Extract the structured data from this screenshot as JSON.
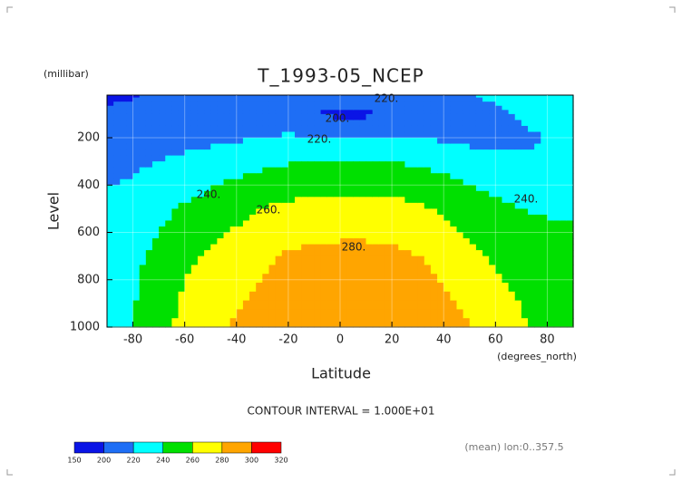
{
  "chart_data": {
    "type": "contour",
    "title": "T_1993-05_NCEP",
    "y_units": "(millibar)",
    "ylabel": "Level",
    "xlabel": "Latitude",
    "x_units": "(degrees_north)",
    "xlim": [
      -90,
      90
    ],
    "ylim": [
      1000,
      20
    ],
    "xticks": [
      -80,
      -60,
      -40,
      -20,
      0,
      20,
      40,
      60,
      80
    ],
    "yticks": [
      200,
      400,
      600,
      800,
      1000
    ],
    "x": [
      -90,
      -80,
      -70,
      -60,
      -50,
      -40,
      -30,
      -20,
      -10,
      0,
      10,
      20,
      30,
      40,
      50,
      60,
      70,
      80,
      90
    ],
    "y": [
      30,
      100,
      200,
      300,
      400,
      500,
      600,
      700,
      850,
      1000
    ],
    "z": [
      [
        195,
        199,
        205,
        210,
        214,
        216,
        217,
        216,
        215,
        214,
        214,
        215,
        216,
        218,
        219,
        222,
        226,
        228,
        230
      ],
      [
        205,
        208,
        210,
        212,
        213,
        214,
        213,
        208,
        199,
        196,
        197,
        202,
        210,
        213,
        215,
        217,
        222,
        224,
        225
      ],
      [
        210,
        212,
        214,
        215,
        216,
        218,
        220,
        222,
        221,
        220,
        220,
        221,
        220,
        217,
        216,
        215,
        218,
        220,
        221
      ],
      [
        215,
        217,
        220,
        223,
        226,
        230,
        234,
        238,
        240,
        241,
        241,
        240,
        237,
        232,
        227,
        224,
        222,
        222,
        222
      ],
      [
        219,
        222,
        228,
        233,
        238,
        244,
        249,
        252,
        254,
        255,
        255,
        254,
        251,
        246,
        240,
        236,
        233,
        232,
        231
      ],
      [
        224,
        228,
        235,
        242,
        248,
        254,
        260,
        264,
        266,
        267,
        267,
        266,
        263,
        257,
        250,
        244,
        240,
        238,
        237
      ],
      [
        228,
        232,
        240,
        248,
        255,
        262,
        268,
        273,
        276,
        277,
        277,
        276,
        273,
        266,
        258,
        252,
        246,
        243,
        242
      ],
      [
        230,
        236,
        245,
        254,
        262,
        270,
        277,
        282,
        284,
        285,
        285,
        284,
        280,
        273,
        265,
        258,
        252,
        248,
        246
      ],
      [
        232,
        238,
        250,
        262,
        270,
        277,
        283,
        288,
        291,
        292,
        293,
        292,
        288,
        280,
        272,
        265,
        258,
        253,
        250
      ],
      [
        235,
        240,
        255,
        265,
        275,
        282,
        288,
        295,
        297,
        298,
        300,
        301,
        295,
        288,
        280,
        272,
        262,
        258,
        255
      ]
    ],
    "contour_levels": [
      150,
      200,
      220,
      240,
      260,
      280,
      300,
      320
    ],
    "colors": [
      "#0a14e6",
      "#1e6ef5",
      "#00ffff",
      "#00e000",
      "#ffff00",
      "#ffa500",
      "#ff0000"
    ],
    "contour_labels": [
      "220.",
      "200.",
      "220.",
      "240.",
      "260.",
      "280.",
      "240."
    ],
    "contour_interval": "CONTOUR INTERVAL = 1.000E+01",
    "footnote": "(mean) lon:0..357.5"
  }
}
